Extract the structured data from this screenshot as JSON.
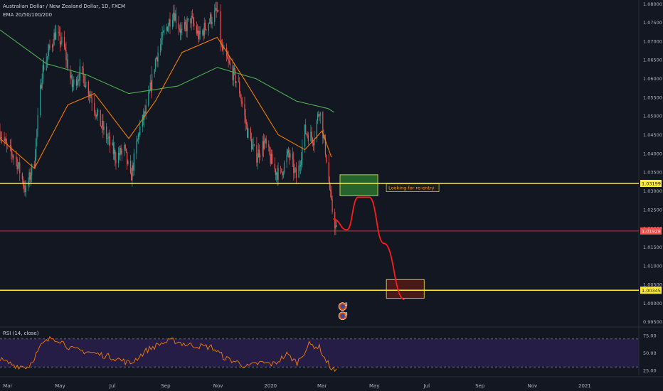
{
  "header": {
    "symbol_title": "Australian Dollar / New Zealand Dollar, 1D, FXCM",
    "indicator_label": "EMA 20/50/100/200",
    "rsi_label": "RSI (14, close)"
  },
  "colors": {
    "background": "#131722",
    "up": "#26a69a",
    "down": "#ef5350",
    "ema_fast": "#f57c00",
    "ema_slow": "#4caf50",
    "level_line": "#ffeb3b",
    "current_price": "#ef5350",
    "rsi_line": "#f57c00",
    "rsi_band": "#2a1f4d",
    "projection": "#ff1a1a",
    "reentry_zone": "#2e7d32",
    "target_zone": "#5b1a1a"
  },
  "annotation": {
    "reentry_label": "Looking for re-entry"
  },
  "chart_data": [
    {
      "type": "candlestick",
      "title": "Australian Dollar / New Zealand Dollar, 1D, FXCM",
      "y_axis_side": "right",
      "ylim": [
        0.994,
        1.081
      ],
      "y_ticks": [
        "1.08000",
        "1.07500",
        "1.07000",
        "1.06500",
        "1.06000",
        "1.05500",
        "1.05000",
        "1.04500",
        "1.04000",
        "1.03500",
        "1.03000",
        "1.02500",
        "1.02000",
        "1.01500",
        "1.01000",
        "1.00500",
        "1.00000",
        "0.99500"
      ],
      "x_labels": [
        "Mar",
        "May",
        "Jul",
        "Sep",
        "Nov",
        "2020",
        "Mar",
        "May",
        "Jul",
        "Sep",
        "Nov",
        "2021"
      ],
      "x_range": [
        "2019-02-20",
        "2021-03-05"
      ],
      "price_path": [
        [
          "2019-02-20",
          1.046
        ],
        [
          "2019-03-01",
          1.041
        ],
        [
          "2019-03-10",
          1.039
        ],
        [
          "2019-03-22",
          1.03
        ],
        [
          "2019-04-01",
          1.038
        ],
        [
          "2019-04-10",
          1.062
        ],
        [
          "2019-04-25",
          1.072
        ],
        [
          "2019-05-05",
          1.069
        ],
        [
          "2019-05-15",
          1.058
        ],
        [
          "2019-05-25",
          1.062
        ],
        [
          "2019-06-05",
          1.056
        ],
        [
          "2019-06-15",
          1.049
        ],
        [
          "2019-06-25",
          1.044
        ],
        [
          "2019-07-05",
          1.039
        ],
        [
          "2019-07-15",
          1.041
        ],
        [
          "2019-07-22",
          1.033
        ],
        [
          "2019-08-01",
          1.046
        ],
        [
          "2019-08-10",
          1.052
        ],
        [
          "2019-08-20",
          1.065
        ],
        [
          "2019-08-30",
          1.072
        ],
        [
          "2019-09-10",
          1.078
        ],
        [
          "2019-09-20",
          1.072
        ],
        [
          "2019-09-30",
          1.076
        ],
        [
          "2019-10-10",
          1.071
        ],
        [
          "2019-10-20",
          1.075
        ],
        [
          "2019-10-31",
          1.078
        ],
        [
          "2019-11-05",
          1.068
        ],
        [
          "2019-11-15",
          1.063
        ],
        [
          "2019-11-25",
          1.058
        ],
        [
          "2019-12-05",
          1.046
        ],
        [
          "2019-12-15",
          1.039
        ],
        [
          "2019-12-25",
          1.043
        ],
        [
          "2020-01-05",
          1.036
        ],
        [
          "2020-01-12",
          1.034
        ],
        [
          "2020-01-22",
          1.04
        ],
        [
          "2020-02-01",
          1.033
        ],
        [
          "2020-02-10",
          1.046
        ],
        [
          "2020-02-20",
          1.044
        ],
        [
          "2020-02-27",
          1.052
        ],
        [
          "2020-03-05",
          1.041
        ],
        [
          "2020-03-12",
          1.026
        ],
        [
          "2020-03-18",
          1.019
        ]
      ],
      "ema_fast": [
        [
          "2019-02-20",
          1.044
        ],
        [
          "2019-04-01",
          1.036
        ],
        [
          "2019-05-10",
          1.053
        ],
        [
          "2019-06-10",
          1.056
        ],
        [
          "2019-07-20",
          1.044
        ],
        [
          "2019-08-20",
          1.054
        ],
        [
          "2019-09-20",
          1.067
        ],
        [
          "2019-10-31",
          1.071
        ],
        [
          "2019-12-01",
          1.06
        ],
        [
          "2020-01-10",
          1.045
        ],
        [
          "2020-02-10",
          1.041
        ],
        [
          "2020-03-01",
          1.046
        ],
        [
          "2020-03-12",
          1.039
        ]
      ],
      "ema_slow": [
        [
          "2019-02-20",
          1.073
        ],
        [
          "2019-04-15",
          1.064
        ],
        [
          "2019-06-01",
          1.061
        ],
        [
          "2019-07-20",
          1.056
        ],
        [
          "2019-09-15",
          1.058
        ],
        [
          "2019-10-31",
          1.063
        ],
        [
          "2019-12-15",
          1.06
        ],
        [
          "2020-01-31",
          1.054
        ],
        [
          "2020-03-08",
          1.052
        ],
        [
          "2020-03-15",
          1.051
        ]
      ],
      "horizontal_levels": [
        {
          "value": 1.03199,
          "label": "1.03199"
        },
        {
          "value": 1.00345,
          "label": "1.00345"
        }
      ],
      "current_price": {
        "value": 1.01928,
        "label": "1.01928"
      },
      "zones": [
        {
          "name": "reentry-zone",
          "x": [
            "2020-03-22",
            "2020-05-05"
          ],
          "y": [
            1.0287,
            1.0343
          ]
        },
        {
          "name": "target-zone",
          "x": [
            "2020-05-15",
            "2020-06-28"
          ],
          "y": [
            1.0013,
            1.0063
          ]
        }
      ],
      "projection_path": [
        [
          "2020-03-14",
          1.0225
        ],
        [
          "2020-03-30",
          1.0196
        ],
        [
          "2020-04-12",
          1.0283
        ],
        [
          "2020-04-25",
          1.0283
        ],
        [
          "2020-05-12",
          1.016
        ],
        [
          "2020-06-05",
          1.001
        ]
      ],
      "event_markers": [
        {
          "date": "2020-03-25",
          "value": 0.9991,
          "label": "3"
        },
        {
          "date": "2020-03-25",
          "value": 0.9966,
          "label": "3"
        }
      ]
    },
    {
      "type": "line",
      "title": "RSI (14, close)",
      "ylim": [
        18,
        85
      ],
      "y_ticks": [
        "75.00",
        "50.00",
        "25.00"
      ],
      "bands": [
        30,
        70
      ],
      "series": [
        {
          "values": [
            [
              "2019-02-20",
              40
            ],
            [
              "2019-03-10",
              32
            ],
            [
              "2019-03-25",
              30
            ],
            [
              "2019-04-10",
              62
            ],
            [
              "2019-04-22",
              72
            ],
            [
              "2019-05-01",
              68
            ],
            [
              "2019-05-15",
              55
            ],
            [
              "2019-06-01",
              52
            ],
            [
              "2019-06-15",
              48
            ],
            [
              "2019-07-01",
              44
            ],
            [
              "2019-07-22",
              35
            ],
            [
              "2019-08-10",
              54
            ],
            [
              "2019-08-25",
              63
            ],
            [
              "2019-09-10",
              68
            ],
            [
              "2019-09-25",
              62
            ],
            [
              "2019-10-10",
              60
            ],
            [
              "2019-10-25",
              58
            ],
            [
              "2019-11-10",
              42
            ],
            [
              "2019-11-25",
              36
            ],
            [
              "2019-12-05",
              30
            ],
            [
              "2019-12-20",
              36
            ],
            [
              "2020-01-05",
              34
            ],
            [
              "2020-01-20",
              48
            ],
            [
              "2020-02-01",
              36
            ],
            [
              "2020-02-15",
              62
            ],
            [
              "2020-02-27",
              58
            ],
            [
              "2020-03-05",
              40
            ],
            [
              "2020-03-12",
              28
            ],
            [
              "2020-03-18",
              23
            ]
          ]
        }
      ]
    }
  ]
}
